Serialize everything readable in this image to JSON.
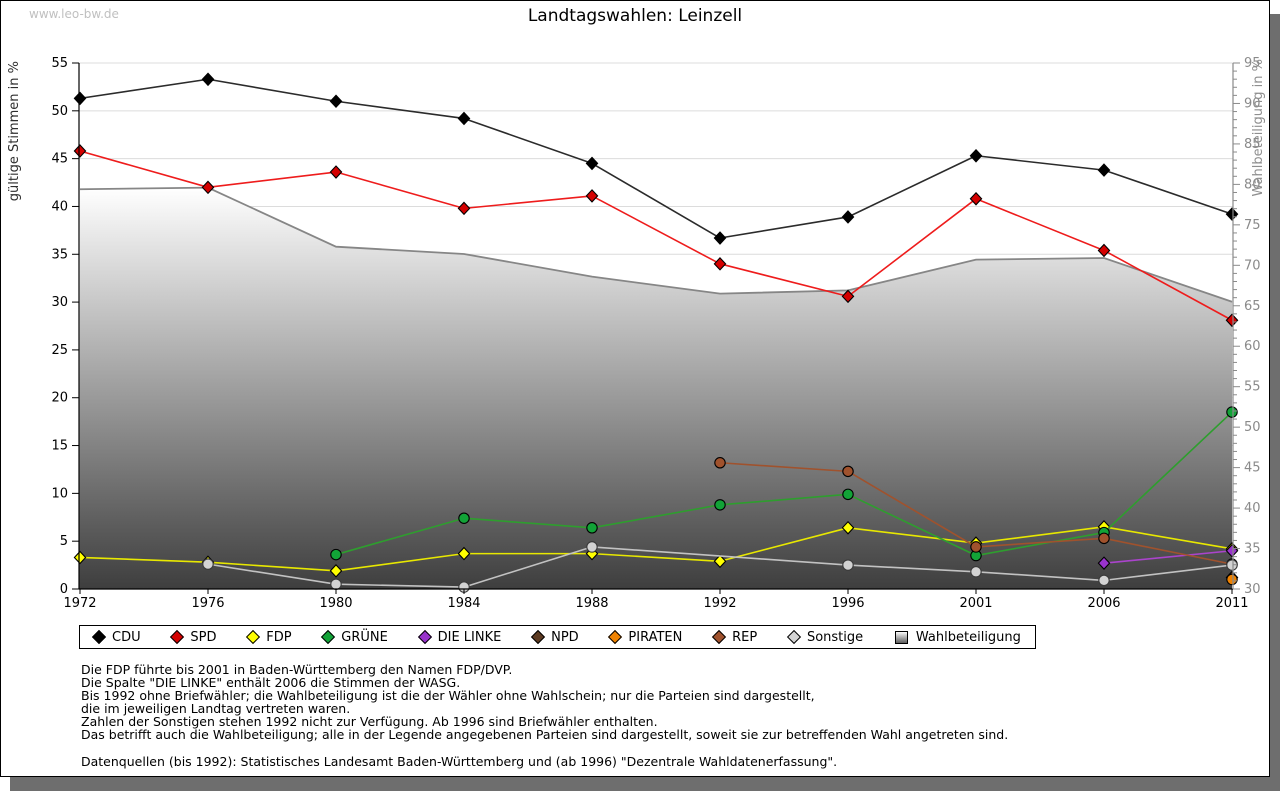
{
  "watermark": "www.leo-bw.de",
  "title": "Landtagswahlen: Leinzell",
  "chart_data": {
    "type": "line",
    "x_categories": [
      "1972",
      "1976",
      "1980",
      "1984",
      "1988",
      "1992",
      "1996",
      "2001",
      "2006",
      "2011"
    ],
    "left_axis": {
      "label": "gültige Stimmen in %",
      "min": 0,
      "max": 55,
      "tick_step": 5
    },
    "right_axis": {
      "label": "Wahlbeteiligung in %",
      "min": 30,
      "max": 95,
      "tick_step": 5
    },
    "grid": "horizontal",
    "legend_position": "bottom",
    "series": [
      {
        "name": "CDU",
        "kind": "line",
        "axis": "left",
        "marker": "diamond",
        "marker_color": "#000000",
        "line_color": "#2b2b2b",
        "marker_stroke": "#000000",
        "values": [
          51.3,
          53.3,
          51.0,
          49.2,
          44.5,
          36.7,
          38.9,
          45.3,
          43.8,
          39.2
        ]
      },
      {
        "name": "SPD",
        "kind": "line",
        "axis": "left",
        "marker": "diamond",
        "marker_color": "#d40000",
        "line_color": "#ee1c1c",
        "marker_stroke": "#000000",
        "values": [
          45.8,
          42.0,
          43.6,
          39.8,
          41.1,
          34.0,
          30.6,
          40.8,
          35.4,
          28.1
        ]
      },
      {
        "name": "FDP",
        "kind": "line",
        "axis": "left",
        "marker": "diamond",
        "marker_color": "#ffff00",
        "line_color": "#e8e800",
        "marker_stroke": "#000000",
        "values": [
          3.3,
          2.8,
          1.9,
          3.7,
          3.7,
          2.9,
          6.4,
          4.8,
          6.5,
          4.2
        ]
      },
      {
        "name": "GRÜNE",
        "kind": "line",
        "axis": "left",
        "marker": "circle",
        "marker_color": "#12a337",
        "line_color": "#2e9e2e",
        "marker_stroke": "#000000",
        "values": [
          null,
          null,
          3.6,
          7.4,
          6.4,
          8.8,
          9.9,
          3.5,
          5.9,
          18.5
        ]
      },
      {
        "name": "DIE LINKE",
        "kind": "line",
        "axis": "left",
        "marker": "diamond",
        "marker_color": "#9933cc",
        "line_color": "#aa44cc",
        "marker_stroke": "#000000",
        "values": [
          null,
          null,
          null,
          null,
          null,
          null,
          null,
          null,
          2.7,
          4.0
        ]
      },
      {
        "name": "NPD",
        "kind": "line",
        "axis": "left",
        "marker": "diamond",
        "marker_color": "#5c3a21",
        "line_color": "#5c3a21",
        "marker_stroke": "#000000",
        "values": [
          null,
          null,
          null,
          null,
          null,
          null,
          null,
          null,
          null,
          1.2
        ]
      },
      {
        "name": "PIRATEN",
        "kind": "line",
        "axis": "left",
        "marker": "circle",
        "marker_color": "#ef8200",
        "line_color": "#ef8200",
        "marker_stroke": "#000000",
        "values": [
          null,
          null,
          null,
          null,
          null,
          null,
          null,
          null,
          null,
          1.0
        ]
      },
      {
        "name": "REP",
        "kind": "line",
        "axis": "left",
        "marker": "circle",
        "marker_color": "#a0522d",
        "line_color": "#a0522d",
        "marker_stroke": "#000000",
        "values": [
          null,
          null,
          null,
          null,
          null,
          13.2,
          12.3,
          4.4,
          5.3,
          2.6
        ]
      },
      {
        "name": "Sonstige",
        "kind": "line",
        "axis": "left",
        "marker": "circle",
        "marker_color": "#d3d3d3",
        "line_color": "#c2c2c2",
        "marker_stroke": "#3a3a3a",
        "values": [
          null,
          2.6,
          0.5,
          0.2,
          4.4,
          null,
          2.5,
          1.8,
          0.9,
          2.5
        ]
      },
      {
        "name": "Wahlbeteiligung",
        "kind": "area",
        "axis": "right",
        "marker": "square",
        "marker_color": "#bfbfbf",
        "line_color": "#868686",
        "marker_stroke": "#000000",
        "gradient_top": "#ffffff",
        "gradient_bottom": "#3e3e3e",
        "values": [
          79.4,
          79.6,
          72.3,
          71.4,
          68.6,
          66.5,
          66.9,
          70.7,
          70.9,
          65.5
        ]
      }
    ]
  },
  "notes": [
    "Die FDP führte bis 2001 in Baden-Württemberg den Namen FDP/DVP.",
    "Die Spalte \"DIE LINKE\" enthält 2006 die Stimmen der WASG.",
    "Bis 1992 ohne Briefwähler; die Wahlbeteiligung ist die der Wähler ohne Wahlschein; nur die Parteien sind dargestellt,",
    "die im jeweiligen Landtag vertreten waren.",
    "Zahlen der Sonstigen stehen 1992 nicht zur Verfügung. Ab 1996 sind Briefwähler enthalten.",
    "Das betrifft auch die Wahlbeteiligung; alle in der Legende angegebenen Parteien sind dargestellt, soweit sie zur betreffenden Wahl angetreten sind."
  ],
  "source": "Datenquellen (bis 1992): Statistisches Landesamt Baden-Württemberg und (ab 1996) \"Dezentrale Wahldatenerfassung\"."
}
